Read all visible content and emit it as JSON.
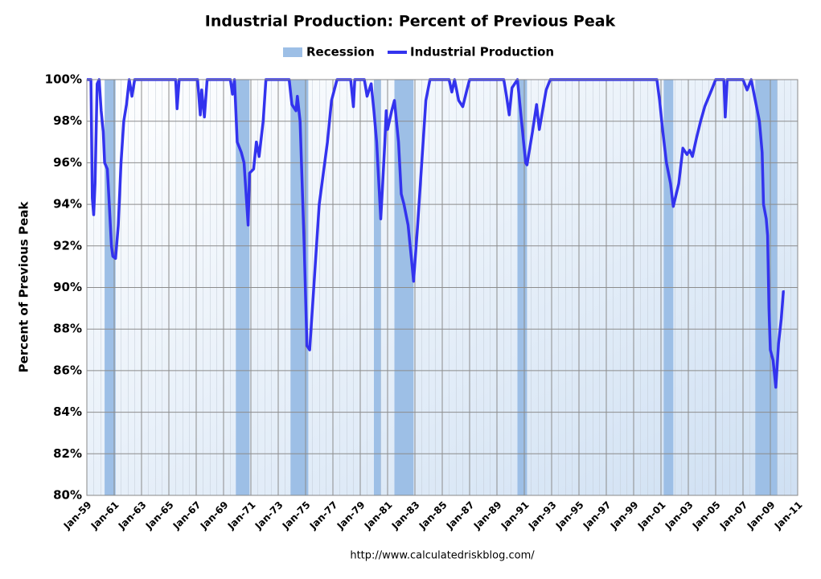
{
  "chart_data": {
    "type": "line",
    "title": "Industrial Production: Percent of Previous Peak",
    "y_label": "Percent of Previous Peak",
    "source": "http://www.calculatedriskblog.com/",
    "recessions": {
      "name": "Recession",
      "color": "#9dbfe6",
      "ranges": [
        [
          1960.3,
          1961.1
        ],
        [
          1969.9,
          1970.9
        ],
        [
          1973.9,
          1975.2
        ],
        [
          1980.0,
          1980.5
        ],
        [
          1981.5,
          1982.9
        ],
        [
          1990.5,
          1991.2
        ],
        [
          2001.2,
          2001.9
        ],
        [
          2007.9,
          2009.5
        ]
      ]
    },
    "series": [
      {
        "name": "Industrial Production",
        "color": "#3333ee",
        "x": [
          1959.0,
          1959.3,
          1959.4,
          1959.5,
          1959.6,
          1959.75,
          1959.9,
          1960.05,
          1960.2,
          1960.3,
          1960.5,
          1960.6,
          1960.8,
          1960.9,
          1961.1,
          1961.3,
          1961.5,
          1961.7,
          1961.9,
          1962.1,
          1962.3,
          1962.5,
          1965.5,
          1965.6,
          1965.75,
          1967.1,
          1967.3,
          1967.4,
          1967.6,
          1967.8,
          1969.5,
          1969.65,
          1969.8,
          1970.0,
          1970.3,
          1970.5,
          1970.6,
          1970.8,
          1970.9,
          1971.2,
          1971.4,
          1971.6,
          1971.9,
          1972.1,
          1973.8,
          1974.0,
          1974.3,
          1974.4,
          1974.6,
          1974.7,
          1974.9,
          1975.1,
          1975.3,
          1975.6,
          1975.8,
          1976.0,
          1976.3,
          1976.6,
          1976.9,
          1977.3,
          1978.3,
          1978.5,
          1978.6,
          1979.3,
          1979.5,
          1979.8,
          1980.0,
          1980.2,
          1980.5,
          1980.6,
          1980.8,
          1980.9,
          1981.0,
          1981.3,
          1981.5,
          1981.8,
          1982.0,
          1982.2,
          1982.5,
          1982.8,
          1982.9,
          1983.2,
          1983.5,
          1983.8,
          1984.1,
          1985.5,
          1985.7,
          1985.9,
          1986.2,
          1986.5,
          1986.8,
          1987.0,
          1989.5,
          1989.7,
          1989.9,
          1990.1,
          1990.5,
          1990.8,
          1991.1,
          1991.2,
          1991.6,
          1991.9,
          1992.1,
          1992.6,
          1992.9,
          2000.7,
          2000.9,
          2001.1,
          2001.4,
          2001.7,
          2001.9,
          2002.3,
          2002.6,
          2002.9,
          2003.1,
          2003.3,
          2003.6,
          2003.9,
          2004.2,
          2004.7,
          2005.0,
          2005.6,
          2005.7,
          2005.85,
          2007.0,
          2007.3,
          2007.6,
          2007.9,
          2008.2,
          2008.4,
          2008.5,
          2008.7,
          2008.8,
          2008.9,
          2009.0,
          2009.2,
          2009.4,
          2009.6,
          2009.8,
          2009.95,
          2010.05
        ],
        "values": [
          100,
          100,
          94.3,
          93.5,
          95,
          99.8,
          100,
          98.5,
          97.5,
          96,
          95.7,
          94.5,
          92,
          91.5,
          91.4,
          93,
          96,
          98,
          98.8,
          100,
          99.2,
          100,
          100,
          98.6,
          100,
          100,
          98.3,
          99.5,
          98.2,
          100,
          100,
          99.3,
          100,
          97,
          96.5,
          96,
          95,
          93,
          95.5,
          95.7,
          97,
          96.3,
          98,
          100,
          100,
          98.8,
          98.5,
          99.2,
          98,
          96,
          92,
          87.2,
          87,
          90,
          92,
          94,
          95.5,
          97,
          99,
          100,
          100,
          98.7,
          100,
          100,
          99.2,
          99.8,
          98.5,
          97,
          93.3,
          94.5,
          97,
          98.5,
          97.6,
          98.5,
          99,
          97,
          94.5,
          94,
          93,
          91,
          90.3,
          93,
          96,
          99,
          100,
          100,
          99.4,
          100,
          99,
          98.7,
          99.5,
          100,
          100,
          99.2,
          98.3,
          99.6,
          100,
          98,
          96,
          95.9,
          97.5,
          98.8,
          97.6,
          99.5,
          100,
          100,
          99,
          97.7,
          96,
          95,
          93.9,
          95,
          96.7,
          96.4,
          96.6,
          96.3,
          97.2,
          98,
          98.7,
          99.5,
          100,
          100,
          98.2,
          100,
          100,
          99.5,
          100,
          99,
          98,
          96.5,
          94,
          93.3,
          92.5,
          89,
          87,
          86.5,
          85.2,
          87.3,
          88.5,
          89.8,
          89.8
        ]
      }
    ],
    "xlim": [
      1959,
      2011
    ],
    "xticks": [
      {
        "value": 1959,
        "label": "Jan-59"
      },
      {
        "value": 1961,
        "label": "Jan-61"
      },
      {
        "value": 1963,
        "label": "Jan-63"
      },
      {
        "value": 1965,
        "label": "Jan-65"
      },
      {
        "value": 1967,
        "label": "Jan-67"
      },
      {
        "value": 1969,
        "label": "Jan-69"
      },
      {
        "value": 1971,
        "label": "Jan-71"
      },
      {
        "value": 1973,
        "label": "Jan-73"
      },
      {
        "value": 1975,
        "label": "Jan-75"
      },
      {
        "value": 1977,
        "label": "Jan-77"
      },
      {
        "value": 1979,
        "label": "Jan-79"
      },
      {
        "value": 1981,
        "label": "Jan-81"
      },
      {
        "value": 1983,
        "label": "Jan-83"
      },
      {
        "value": 1985,
        "label": "Jan-85"
      },
      {
        "value": 1987,
        "label": "Jan-87"
      },
      {
        "value": 1989,
        "label": "Jan-89"
      },
      {
        "value": 1991,
        "label": "Jan-91"
      },
      {
        "value": 1993,
        "label": "Jan-93"
      },
      {
        "value": 1995,
        "label": "Jan-95"
      },
      {
        "value": 1997,
        "label": "Jan-97"
      },
      {
        "value": 1999,
        "label": "Jan-99"
      },
      {
        "value": 2001,
        "label": "Jan-01"
      },
      {
        "value": 2003,
        "label": "Jan-03"
      },
      {
        "value": 2005,
        "label": "Jan-05"
      },
      {
        "value": 2007,
        "label": "Jan-07"
      },
      {
        "value": 2009,
        "label": "Jan-09"
      },
      {
        "value": 2011,
        "label": "Jan-11"
      }
    ],
    "ylim": [
      80,
      100
    ],
    "yticks": [
      {
        "value": 80,
        "label": "80%"
      },
      {
        "value": 82,
        "label": "82%"
      },
      {
        "value": 84,
        "label": "84%"
      },
      {
        "value": 86,
        "label": "86%"
      },
      {
        "value": 88,
        "label": "88%"
      },
      {
        "value": 90,
        "label": "90%"
      },
      {
        "value": 92,
        "label": "92%"
      },
      {
        "value": 94,
        "label": "94%"
      },
      {
        "value": 96,
        "label": "96%"
      },
      {
        "value": 98,
        "label": "98%"
      },
      {
        "value": 100,
        "label": "100%"
      }
    ],
    "grid": true
  }
}
